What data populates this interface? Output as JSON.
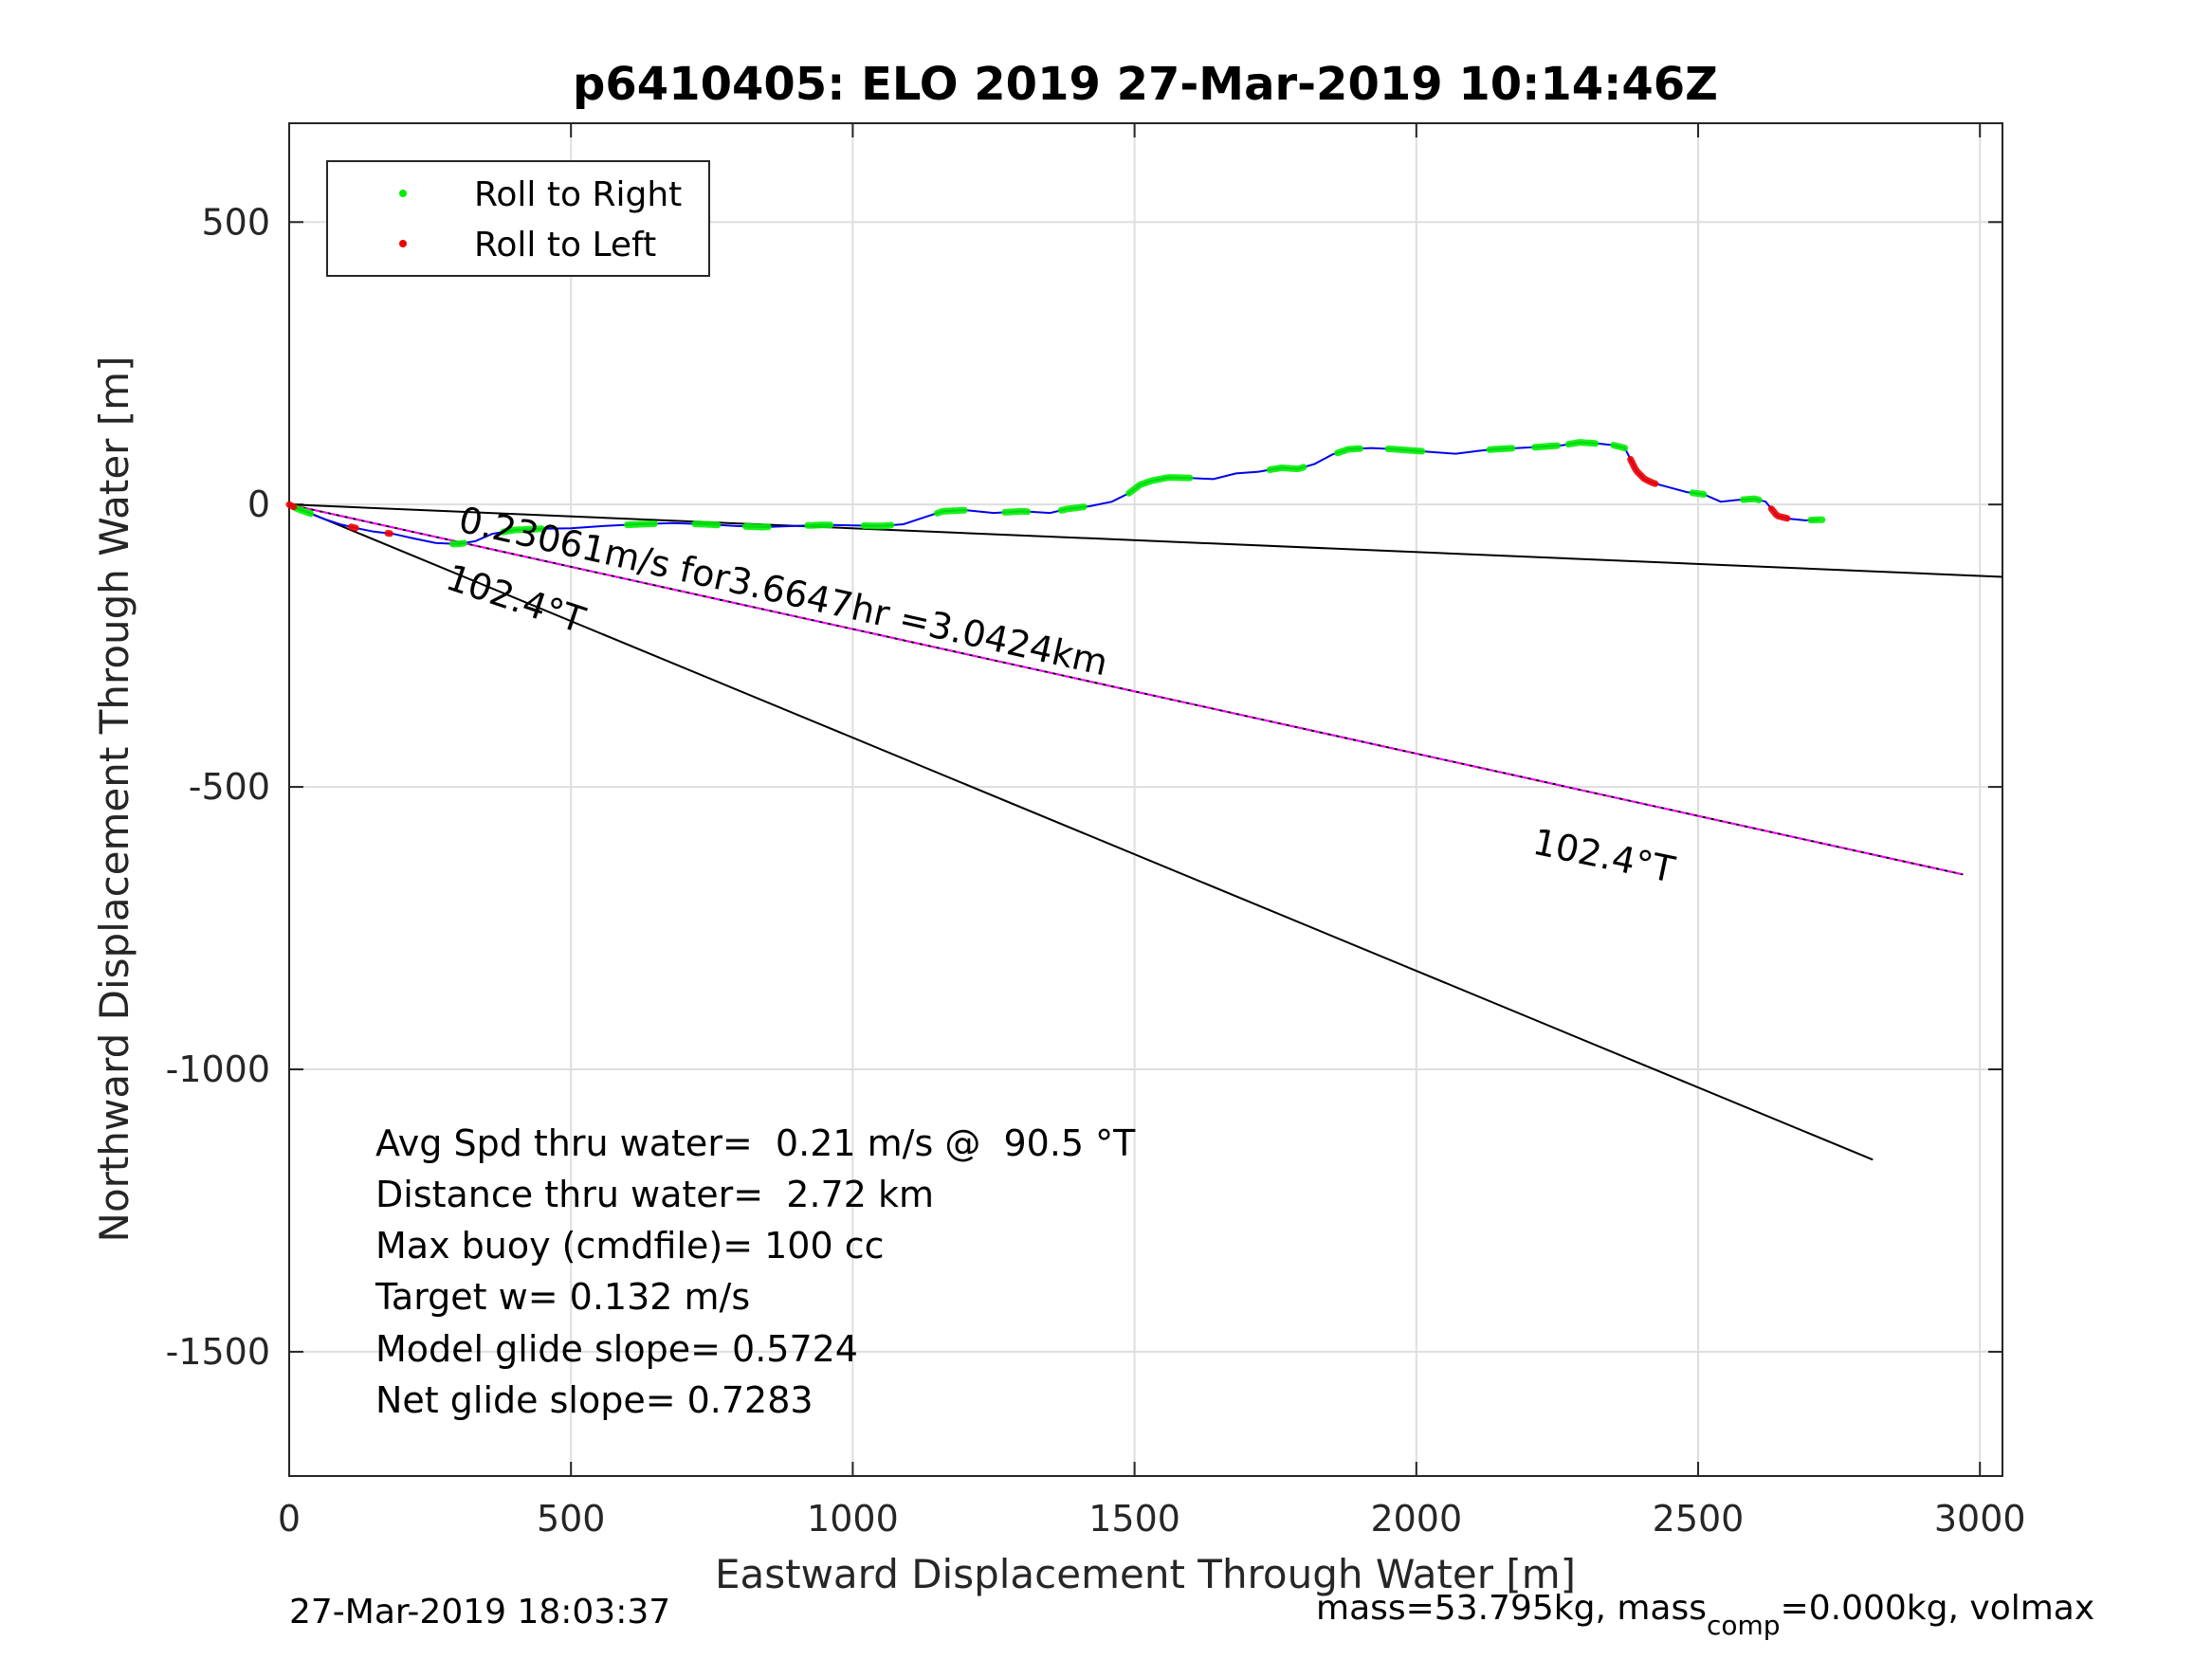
{
  "chart_data": {
    "type": "line",
    "title": "p6410405: ELO 2019 27-Mar-2019 10:14:46Z",
    "xlabel": "Eastward Displacement Through Water [m]",
    "ylabel": "Northward Displacement Through Water [m]",
    "xlim": [
      0,
      3040
    ],
    "ylim": [
      -1720,
      675
    ],
    "xticks": [
      0,
      500,
      1000,
      1500,
      2000,
      2500,
      3000
    ],
    "yticks": [
      500,
      0,
      -500,
      -1000,
      -1500
    ],
    "grid": true,
    "legend": {
      "placement": "top-left",
      "entries": [
        {
          "label": "Roll to Right",
          "color": "#00ee00"
        },
        {
          "label": "Roll to Left",
          "color": "#ee0000"
        }
      ]
    },
    "track_color": "#0000ee",
    "track": [
      [
        0,
        0
      ],
      [
        15,
        -8
      ],
      [
        35,
        -15
      ],
      [
        60,
        -25
      ],
      [
        90,
        -35
      ],
      [
        120,
        -42
      ],
      [
        150,
        -48
      ],
      [
        185,
        -52
      ],
      [
        220,
        -60
      ],
      [
        260,
        -68
      ],
      [
        300,
        -70
      ],
      [
        330,
        -65
      ],
      [
        360,
        -52
      ],
      [
        400,
        -45
      ],
      [
        450,
        -43
      ],
      [
        500,
        -42
      ],
      [
        560,
        -38
      ],
      [
        620,
        -35
      ],
      [
        680,
        -33
      ],
      [
        740,
        -35
      ],
      [
        790,
        -38
      ],
      [
        840,
        -40
      ],
      [
        900,
        -38
      ],
      [
        950,
        -36
      ],
      [
        1000,
        -37
      ],
      [
        1050,
        -38
      ],
      [
        1090,
        -35
      ],
      [
        1120,
        -25
      ],
      [
        1160,
        -12
      ],
      [
        1200,
        -10
      ],
      [
        1250,
        -15
      ],
      [
        1300,
        -12
      ],
      [
        1350,
        -15
      ],
      [
        1380,
        -8
      ],
      [
        1420,
        -3
      ],
      [
        1460,
        5
      ],
      [
        1490,
        20
      ],
      [
        1510,
        35
      ],
      [
        1530,
        42
      ],
      [
        1560,
        48
      ],
      [
        1600,
        47
      ],
      [
        1640,
        45
      ],
      [
        1680,
        55
      ],
      [
        1720,
        58
      ],
      [
        1760,
        65
      ],
      [
        1790,
        63
      ],
      [
        1820,
        72
      ],
      [
        1850,
        88
      ],
      [
        1880,
        98
      ],
      [
        1920,
        100
      ],
      [
        1960,
        98
      ],
      [
        2000,
        95
      ],
      [
        2040,
        92
      ],
      [
        2070,
        90
      ],
      [
        2110,
        95
      ],
      [
        2140,
        98
      ],
      [
        2180,
        100
      ],
      [
        2220,
        102
      ],
      [
        2260,
        105
      ],
      [
        2290,
        110
      ],
      [
        2320,
        108
      ],
      [
        2350,
        105
      ],
      [
        2370,
        100
      ],
      [
        2380,
        80
      ],
      [
        2390,
        60
      ],
      [
        2405,
        45
      ],
      [
        2420,
        38
      ],
      [
        2450,
        30
      ],
      [
        2480,
        22
      ],
      [
        2510,
        18
      ],
      [
        2540,
        5
      ],
      [
        2570,
        8
      ],
      [
        2600,
        10
      ],
      [
        2620,
        5
      ],
      [
        2640,
        -20
      ],
      [
        2660,
        -25
      ],
      [
        2690,
        -28
      ],
      [
        2715,
        -27
      ]
    ],
    "roll_right_segments": [
      [
        10,
        40
      ],
      [
        290,
        310
      ],
      [
        380,
        450
      ],
      [
        600,
        650
      ],
      [
        720,
        760
      ],
      [
        810,
        850
      ],
      [
        920,
        960
      ],
      [
        1020,
        1070
      ],
      [
        1150,
        1200
      ],
      [
        1270,
        1310
      ],
      [
        1370,
        1410
      ],
      [
        1490,
        1600
      ],
      [
        1740,
        1800
      ],
      [
        1860,
        1900
      ],
      [
        1950,
        2010
      ],
      [
        2130,
        2170
      ],
      [
        2210,
        2250
      ],
      [
        2270,
        2320
      ],
      [
        2350,
        2370
      ],
      [
        2490,
        2510
      ],
      [
        2580,
        2610
      ],
      [
        2700,
        2720
      ]
    ],
    "roll_left_segments": [
      [
        0,
        10
      ],
      [
        110,
        120
      ],
      [
        175,
        180
      ],
      [
        2380,
        2425
      ],
      [
        2630,
        2660
      ]
    ],
    "lines": [
      {
        "name": "net heading",
        "color": "#000000",
        "points": [
          [
            0,
            0
          ],
          [
            3040,
            -128
          ]
        ]
      },
      {
        "name": "102.4°T",
        "color": "#000000",
        "points": [
          [
            0,
            0
          ],
          [
            2810,
            -1160
          ]
        ]
      },
      {
        "name": "current",
        "color": "#000000",
        "overlay_color": "#ff00ff",
        "points": [
          [
            0,
            0
          ],
          [
            2970,
            -655
          ]
        ]
      }
    ],
    "annotations": [
      {
        "text": "0.23061m/s for3.6647hr =3.0424km"
      },
      {
        "text": "102.4°T"
      },
      {
        "text": "102.4°T"
      }
    ],
    "stats": [
      "Avg Spd thru water=  0.21 m/s @  90.5 °T",
      "Distance thru water=  2.72 km",
      "Max buoy (cmdfile)= 100 cc",
      "Target w= 0.132 m/s",
      "Model glide slope= 0.5724",
      "Net glide slope= 0.7283"
    ]
  },
  "footer": {
    "timestamp": "27-Mar-2019 18:03:37",
    "mass_prefix": "mass=53.795kg, mass",
    "mass_sub": "comp",
    "mass_suffix": "=0.000kg, volmax"
  }
}
